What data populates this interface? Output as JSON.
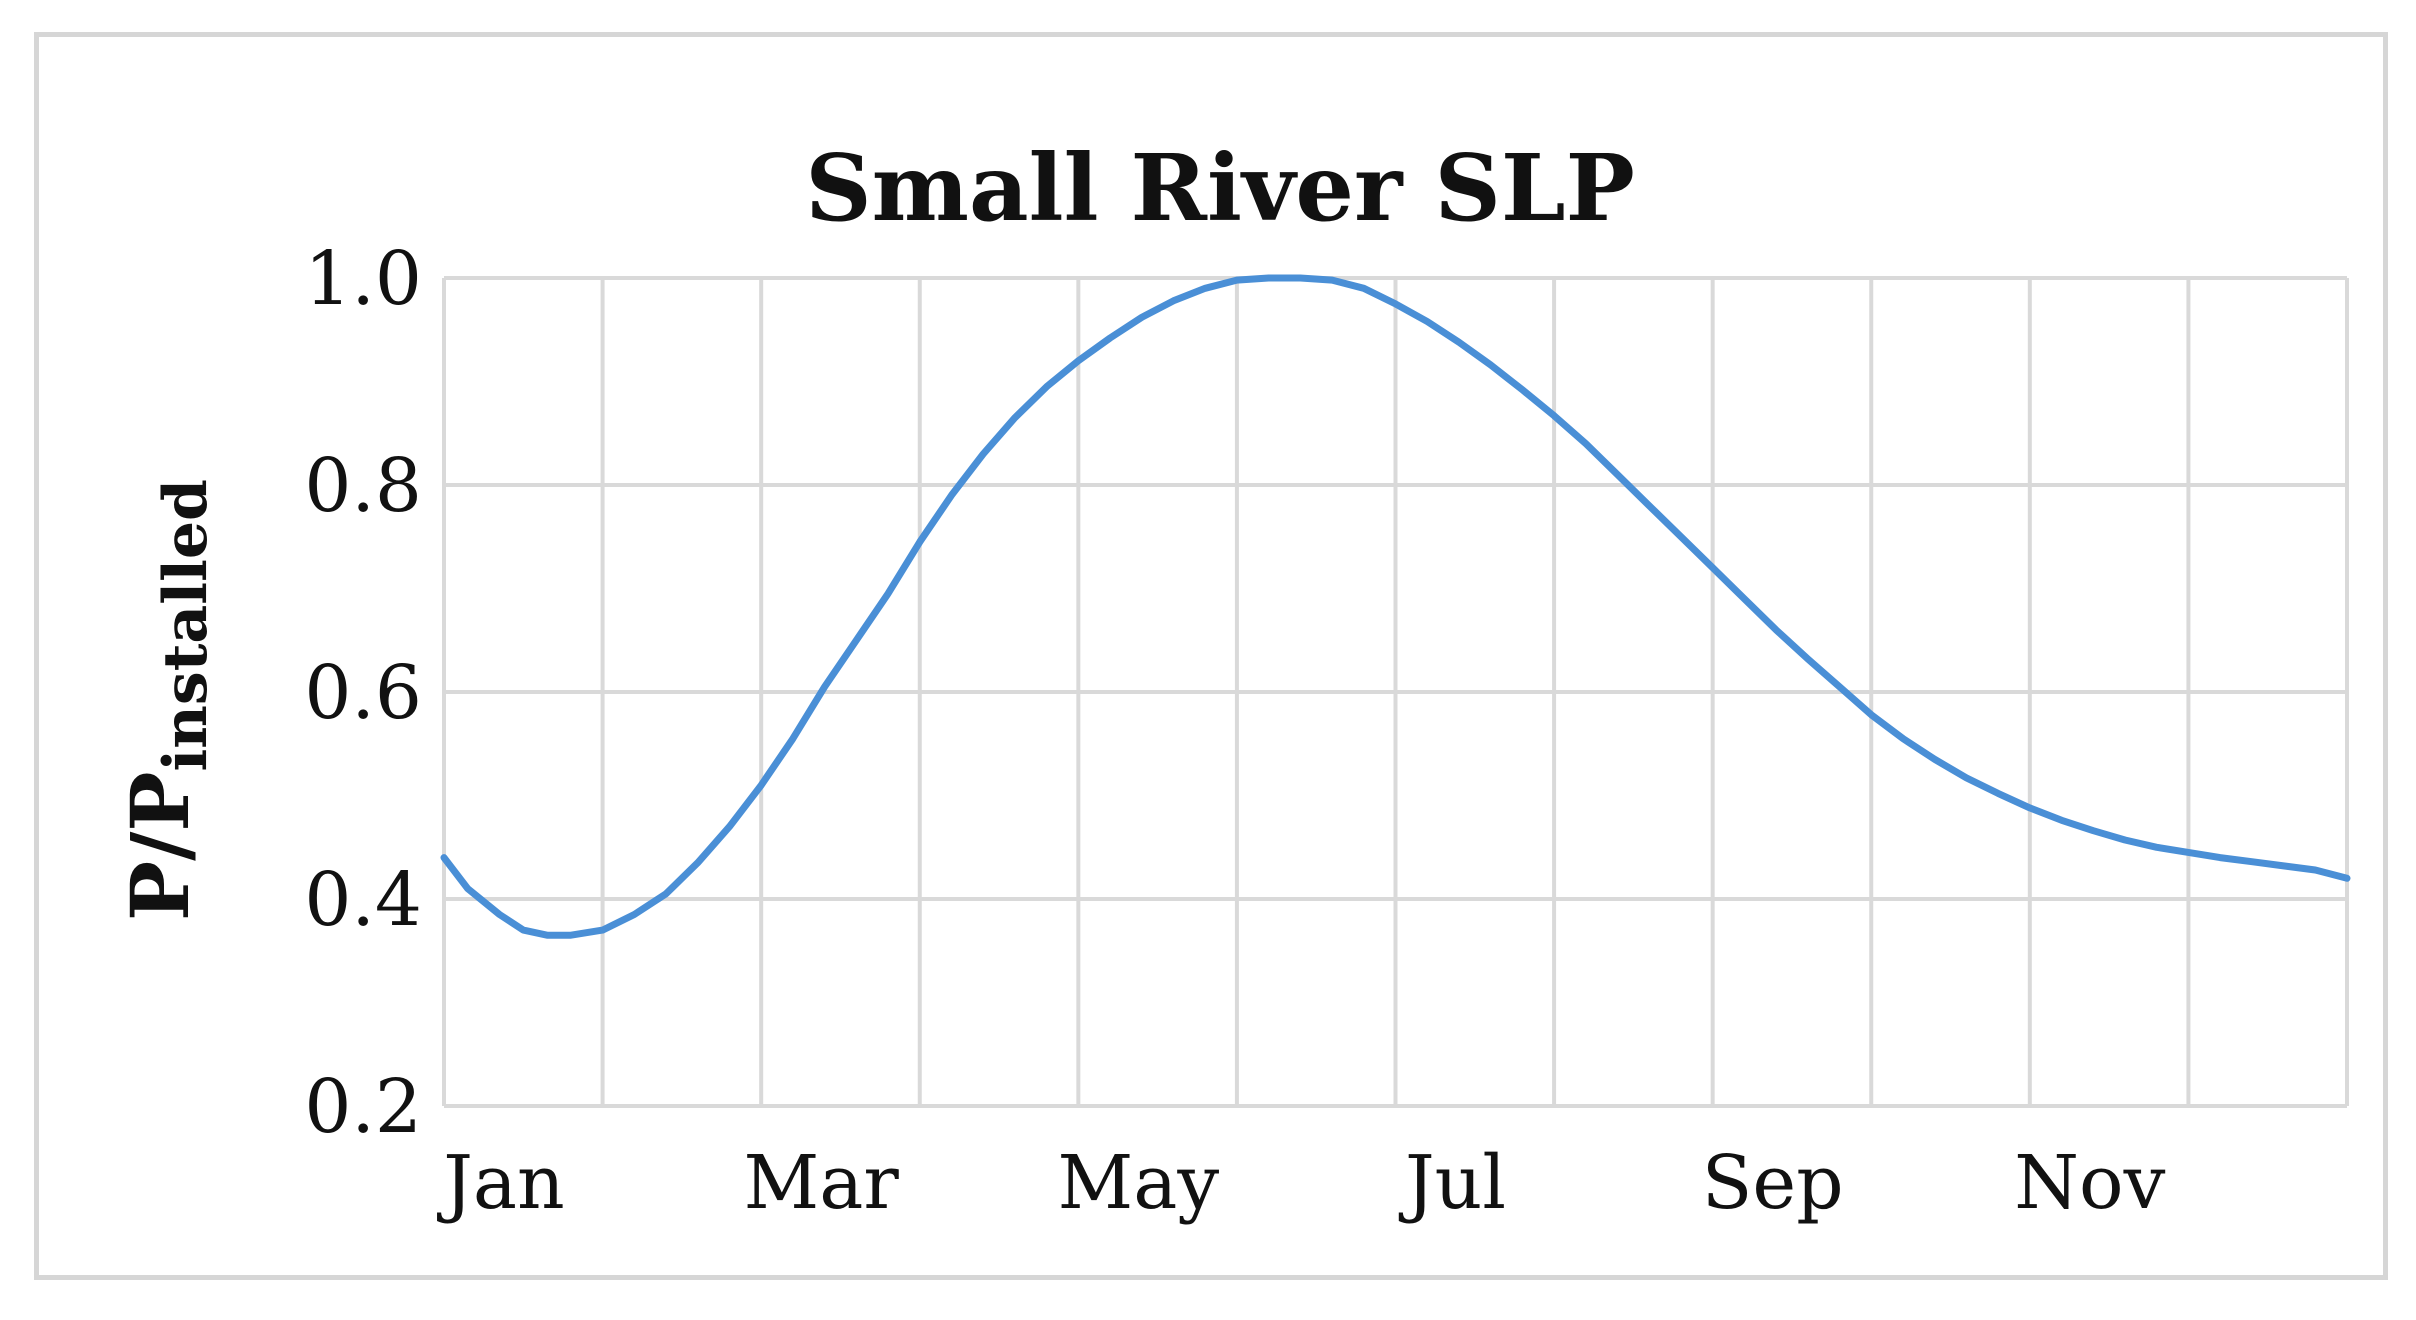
{
  "chart_data": {
    "type": "line",
    "title": "Small River SLP",
    "ylabel": {
      "main": "P/P",
      "subscript": "installed"
    },
    "xlabel": "",
    "x_tick_labels": [
      "Jan",
      "Mar",
      "May",
      "Jul",
      "Sep",
      "Nov"
    ],
    "y_tick_labels": [
      "0.2",
      "0.4",
      "0.6",
      "0.8",
      "1.0"
    ],
    "ylim": [
      0.2,
      1.0
    ],
    "x_unit": "month",
    "xlim": [
      0,
      12
    ],
    "grid": true,
    "legend": "none",
    "series": [
      {
        "color": "#4a8fd6",
        "x": [
          0,
          0.15,
          0.35,
          0.5,
          0.65,
          0.8,
          1.0,
          1.2,
          1.4,
          1.6,
          1.8,
          2.0,
          2.2,
          2.4,
          2.6,
          2.8,
          3.0,
          3.2,
          3.4,
          3.6,
          3.8,
          4.0,
          4.2,
          4.4,
          4.6,
          4.8,
          5.0,
          5.2,
          5.4,
          5.6,
          5.8,
          6.0,
          6.2,
          6.4,
          6.6,
          6.8,
          7.0,
          7.2,
          7.4,
          7.6,
          7.8,
          8.0,
          8.2,
          8.4,
          8.6,
          8.8,
          9.0,
          9.2,
          9.4,
          9.6,
          9.8,
          10.0,
          10.2,
          10.4,
          10.6,
          10.8,
          11.0,
          11.2,
          11.4,
          11.6,
          11.8,
          12.0
        ],
        "y": [
          0.44,
          0.41,
          0.385,
          0.37,
          0.365,
          0.365,
          0.37,
          0.385,
          0.405,
          0.435,
          0.47,
          0.51,
          0.555,
          0.605,
          0.65,
          0.695,
          0.745,
          0.79,
          0.83,
          0.865,
          0.895,
          0.92,
          0.942,
          0.962,
          0.978,
          0.99,
          0.998,
          1.0,
          1.0,
          0.998,
          0.99,
          0.975,
          0.958,
          0.938,
          0.916,
          0.892,
          0.867,
          0.84,
          0.81,
          0.78,
          0.75,
          0.72,
          0.69,
          0.66,
          0.632,
          0.605,
          0.578,
          0.555,
          0.535,
          0.517,
          0.502,
          0.488,
          0.476,
          0.466,
          0.457,
          0.45,
          0.445,
          0.44,
          0.436,
          0.432,
          0.428,
          0.42
        ]
      }
    ]
  }
}
